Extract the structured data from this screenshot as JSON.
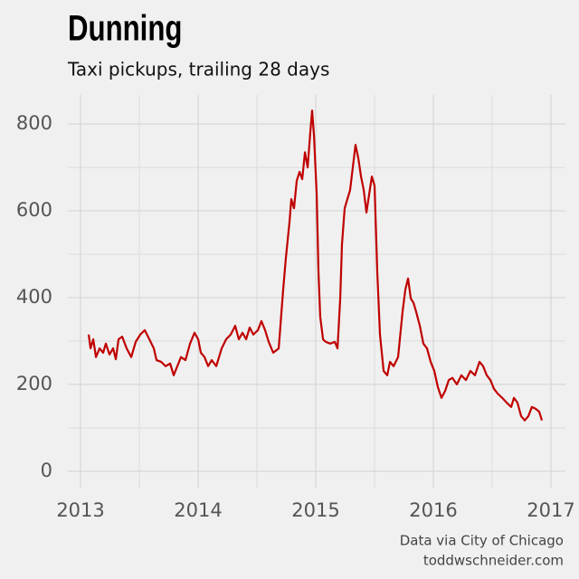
{
  "chart_data": {
    "type": "line",
    "title": "Dunning",
    "subtitle": "Taxi pickups, trailing 28 days",
    "caption": [
      "Data via City of Chicago",
      "toddwschneider.com"
    ],
    "x": [
      2013.069,
      2013.085,
      2013.108,
      2013.131,
      2013.162,
      2013.192,
      2013.215,
      2013.246,
      2013.277,
      2013.3,
      2013.323,
      2013.354,
      2013.392,
      2013.431,
      2013.469,
      2013.508,
      2013.546,
      2013.585,
      2013.623,
      2013.646,
      2013.685,
      2013.723,
      2013.762,
      2013.792,
      2013.823,
      2013.854,
      2013.892,
      2013.931,
      2013.969,
      2014.0,
      2014.023,
      2014.054,
      2014.085,
      2014.115,
      2014.154,
      2014.2,
      2014.238,
      2014.277,
      2014.315,
      2014.346,
      2014.377,
      2014.408,
      2014.438,
      2014.469,
      2014.508,
      2014.538,
      2014.569,
      2014.6,
      2014.638,
      2014.685,
      2014.723,
      2014.746,
      2014.777,
      2014.792,
      2014.815,
      2014.838,
      2014.862,
      2014.885,
      2014.908,
      2014.931,
      2014.954,
      2014.969,
      2014.985,
      2015.008,
      2015.023,
      2015.038,
      2015.062,
      2015.085,
      2015.123,
      2015.162,
      2015.185,
      2015.208,
      2015.223,
      2015.246,
      2015.269,
      2015.292,
      2015.315,
      2015.338,
      2015.362,
      2015.385,
      2015.408,
      2015.431,
      2015.454,
      2015.477,
      2015.5,
      2015.523,
      2015.546,
      2015.577,
      2015.608,
      2015.631,
      2015.662,
      2015.7,
      2015.738,
      2015.762,
      2015.785,
      2015.808,
      2015.831,
      2015.854,
      2015.885,
      2015.915,
      2015.946,
      2015.977,
      2016.008,
      2016.038,
      2016.069,
      2016.1,
      2016.131,
      2016.162,
      2016.2,
      2016.238,
      2016.277,
      2016.315,
      2016.354,
      2016.392,
      2016.423,
      2016.454,
      2016.485,
      2016.515,
      2016.546,
      2016.585,
      2016.623,
      2016.662,
      2016.685,
      2016.715,
      2016.746,
      2016.777,
      2016.808,
      2016.838,
      2016.869,
      2016.9,
      2016.923
    ],
    "series": [
      {
        "color": "#c00000",
        "values": [
          315,
          283,
          304,
          263,
          283,
          273,
          294,
          269,
          283,
          258,
          304,
          310,
          283,
          263,
          298,
          315,
          325,
          304,
          283,
          256,
          252,
          242,
          248,
          221,
          242,
          263,
          256,
          294,
          319,
          304,
          273,
          263,
          242,
          256,
          242,
          283,
          304,
          315,
          335,
          304,
          319,
          304,
          331,
          315,
          325,
          346,
          325,
          298,
          273,
          283,
          419,
          492,
          575,
          627,
          606,
          669,
          690,
          673,
          735,
          700,
          783,
          831,
          773,
          638,
          460,
          356,
          304,
          298,
          294,
          298,
          283,
          398,
          523,
          606,
          627,
          648,
          700,
          752,
          721,
          679,
          648,
          596,
          638,
          679,
          658,
          460,
          315,
          231,
          221,
          252,
          242,
          263,
          367,
          419,
          444,
          398,
          388,
          367,
          335,
          294,
          283,
          252,
          231,
          194,
          169,
          185,
          210,
          215,
          200,
          221,
          210,
          231,
          221,
          252,
          242,
          221,
          210,
          190,
          179,
          169,
          158,
          148,
          169,
          158,
          127,
          117,
          127,
          148,
          144,
          137,
          117
        ]
      }
    ],
    "xlim": [
      2012.892,
      2017.123
    ],
    "ylim": [
      -40,
      867
    ],
    "xticks": [
      2013,
      2014,
      2015,
      2016,
      2017
    ],
    "yticks": [
      0,
      200,
      400,
      600,
      800
    ],
    "x_minor_ticks": [
      2013.5,
      2014.5,
      2015.5,
      2016.5
    ],
    "y_minor_ticks": [
      100,
      300,
      500,
      700
    ],
    "grid": true
  }
}
